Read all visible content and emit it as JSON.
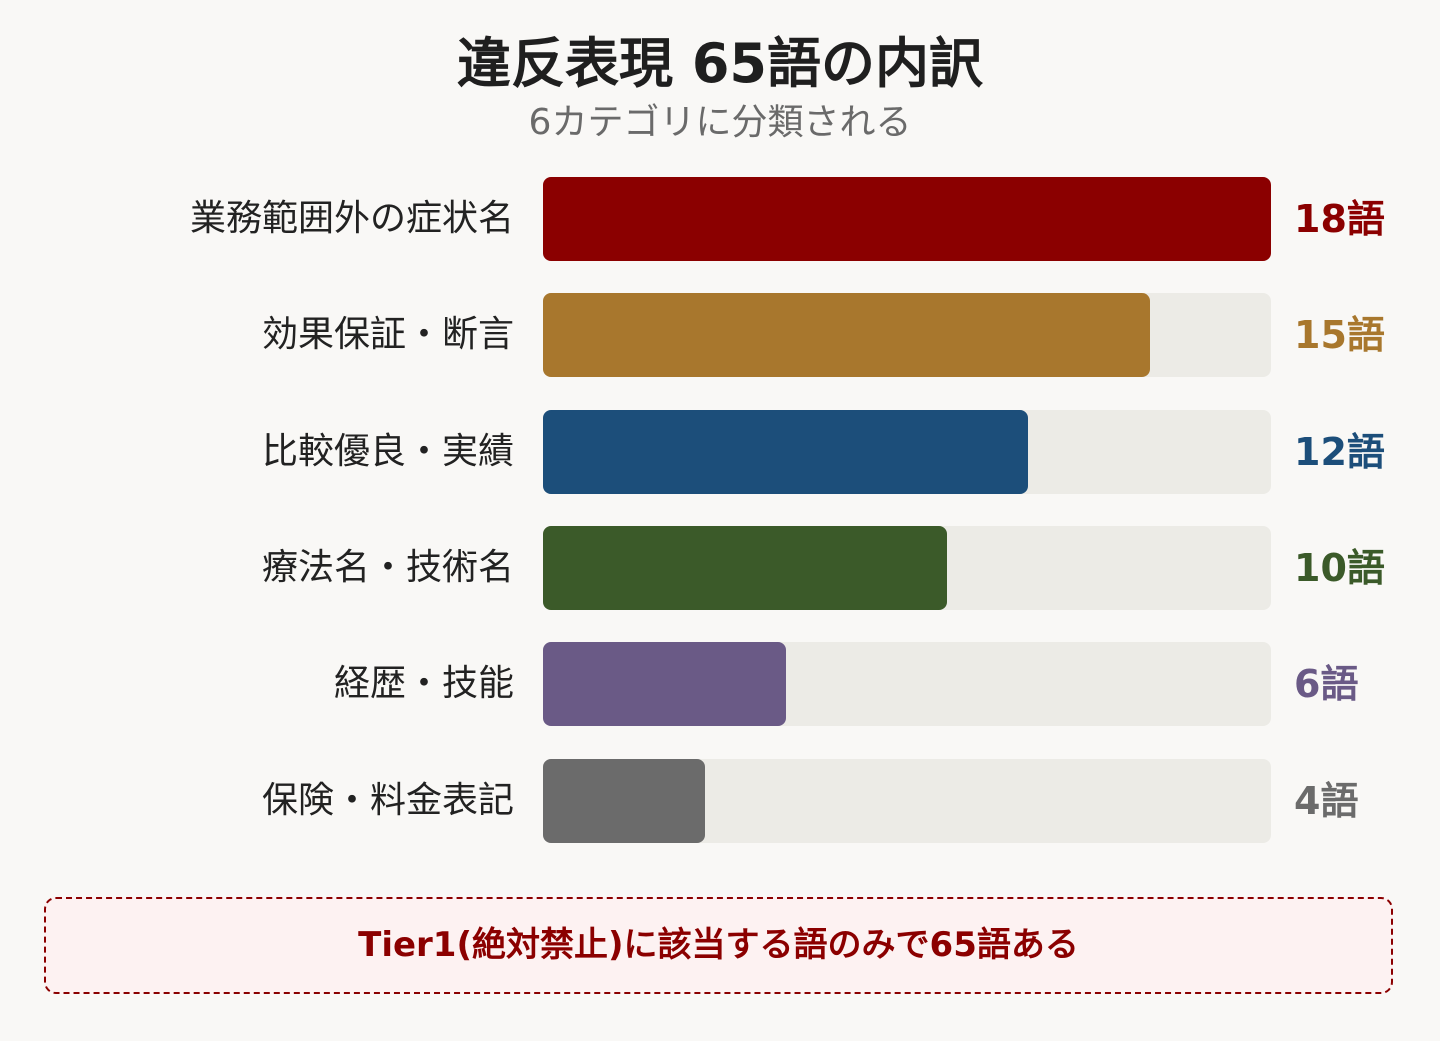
{
  "chart_data": {
    "type": "bar",
    "orientation": "horizontal",
    "title": "違反表現 65語の内訳",
    "subtitle": "6カテゴリに分類される",
    "categories": [
      "業務範囲外の症状名",
      "効果保証・断言",
      "比較優良・実績",
      "療法名・技術名",
      "経歴・技能",
      "保険・料金表記"
    ],
    "values": [
      18,
      15,
      12,
      10,
      6,
      4
    ],
    "value_labels": [
      "18語",
      "15語",
      "12語",
      "10語",
      "6語",
      "4語"
    ],
    "colors": [
      "#8b0000",
      "#a8772d",
      "#1c4e7a",
      "#3b5a29",
      "#6a5a86",
      "#6b6b6b"
    ],
    "xlim": [
      0,
      18
    ],
    "grid": false
  },
  "note": {
    "text": "Tier1(絶対禁止)に該当する語のみで65語ある"
  }
}
